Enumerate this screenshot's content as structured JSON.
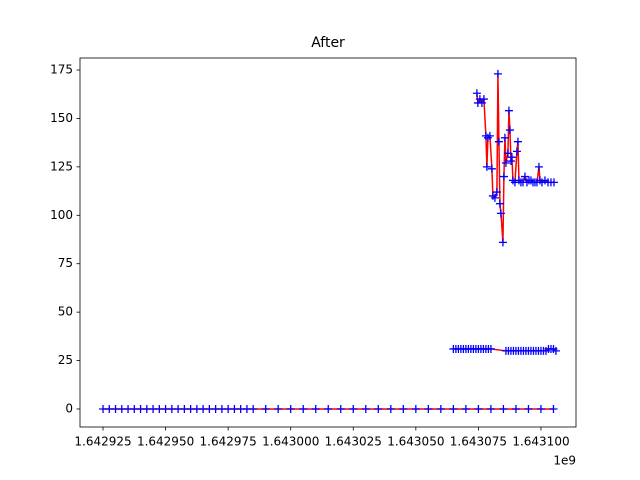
{
  "chart_data": {
    "type": "line",
    "title": "After",
    "x_offset_label": "1e9",
    "xlim": [
      1642915800,
      1643114000
    ],
    "ylim": [
      -9.3,
      181.2
    ],
    "xticks": [
      {
        "value": 1642925000,
        "label": "1.642925"
      },
      {
        "value": 1642950000,
        "label": "1.642950"
      },
      {
        "value": 1642975000,
        "label": "1.642975"
      },
      {
        "value": 1643000000,
        "label": "1.643000"
      },
      {
        "value": 1643025000,
        "label": "1.643025"
      },
      {
        "value": 1643050000,
        "label": "1.643050"
      },
      {
        "value": 1643075000,
        "label": "1.643075"
      },
      {
        "value": 1643100000,
        "label": "1.643100"
      }
    ],
    "yticks": [
      0,
      25,
      50,
      75,
      100,
      125,
      150,
      175
    ],
    "series": [
      {
        "color": "#ff0000",
        "marker_color": "#0000ff",
        "marker": "+",
        "x": [
          1642925000,
          1642927500,
          1642930000,
          1642932500,
          1642935000,
          1642937500,
          1642940000,
          1642942500,
          1642945000,
          1642947500,
          1642950000,
          1642952500,
          1642955000,
          1642957500,
          1642960000,
          1642962500,
          1642965000,
          1642967500,
          1642970000,
          1642972500,
          1642975000,
          1642977500,
          1642980000,
          1642982500,
          1642985000,
          1642990000,
          1642995000,
          1643000000,
          1643005000,
          1643010000,
          1643015000,
          1643020000,
          1643025000,
          1643030000,
          1643035000,
          1643040000,
          1643045000,
          1643050000,
          1643055000,
          1643060000,
          1643065000,
          1643070000,
          1643075000,
          1643080000,
          1643085000,
          1643090000,
          1643095000,
          1643100000,
          1643105000
        ],
        "values": [
          0,
          0,
          0,
          0,
          0,
          0,
          0,
          0,
          0,
          0,
          0,
          0,
          0,
          0,
          0,
          0,
          0,
          0,
          0,
          0,
          0,
          0,
          0,
          0,
          0,
          0,
          0,
          0,
          0,
          0,
          0,
          0,
          0,
          0,
          0,
          0,
          0,
          0,
          0,
          0,
          0,
          0,
          0,
          0,
          0,
          0,
          0,
          0,
          0
        ]
      },
      {
        "color": "#ff0000",
        "marker_color": "#0000ff",
        "marker": "+",
        "x": [
          1643065000,
          1643066000,
          1643067000,
          1643068000,
          1643069000,
          1643070000,
          1643071000,
          1643072000,
          1643073000,
          1643074000,
          1643075000,
          1643076000,
          1643077000,
          1643078000,
          1643079000,
          1643080000,
          1643086000,
          1643087000,
          1643088000,
          1643089000,
          1643090000,
          1643091000,
          1643092000,
          1643093000,
          1643094000,
          1643095000,
          1643096000,
          1643097000,
          1643098000,
          1643099000,
          1643100000,
          1643101000,
          1643102000,
          1643103000,
          1643104000,
          1643105000,
          1643106000
        ],
        "values": [
          31,
          31,
          31,
          31,
          31,
          31,
          31,
          31,
          31,
          31,
          31,
          31,
          31,
          31,
          31,
          31,
          30,
          30,
          30,
          30,
          30,
          30,
          30,
          30,
          30,
          30,
          30,
          30,
          30,
          30,
          30,
          30,
          30,
          31,
          31,
          31,
          30
        ]
      },
      {
        "color": "#ff0000",
        "marker_color": "#0000ff",
        "marker": "+",
        "x": [
          1643074400,
          1643074800,
          1643075600,
          1643076400,
          1643077200,
          1643078000,
          1643078400,
          1643078800,
          1643079600,
          1643080400,
          1643080800,
          1643081600,
          1643082400,
          1643082800,
          1643083200,
          1643083600,
          1643084000,
          1643084800,
          1643085200,
          1643085600,
          1643086000,
          1643086800,
          1643087200,
          1643087600,
          1643088000,
          1643088400,
          1643088800,
          1643089600,
          1643090400,
          1643090800,
          1643091200,
          1643092000,
          1643092800,
          1643093600,
          1643094400,
          1643095200,
          1643096000,
          1643096800,
          1643097600,
          1643098400,
          1643099200,
          1643099600,
          1643100400,
          1643101600,
          1643102800,
          1643104000,
          1643105200
        ],
        "values": [
          163,
          158,
          160,
          158,
          160,
          141,
          125,
          140,
          141,
          124,
          110,
          109,
          112,
          173,
          138,
          106,
          101,
          86,
          120,
          140,
          127,
          132,
          154,
          144,
          128,
          130,
          118,
          117,
          133,
          138,
          118,
          117,
          117,
          120,
          117,
          118,
          118,
          117,
          117,
          117,
          125,
          118,
          117,
          118,
          117,
          117,
          117
        ]
      }
    ]
  }
}
